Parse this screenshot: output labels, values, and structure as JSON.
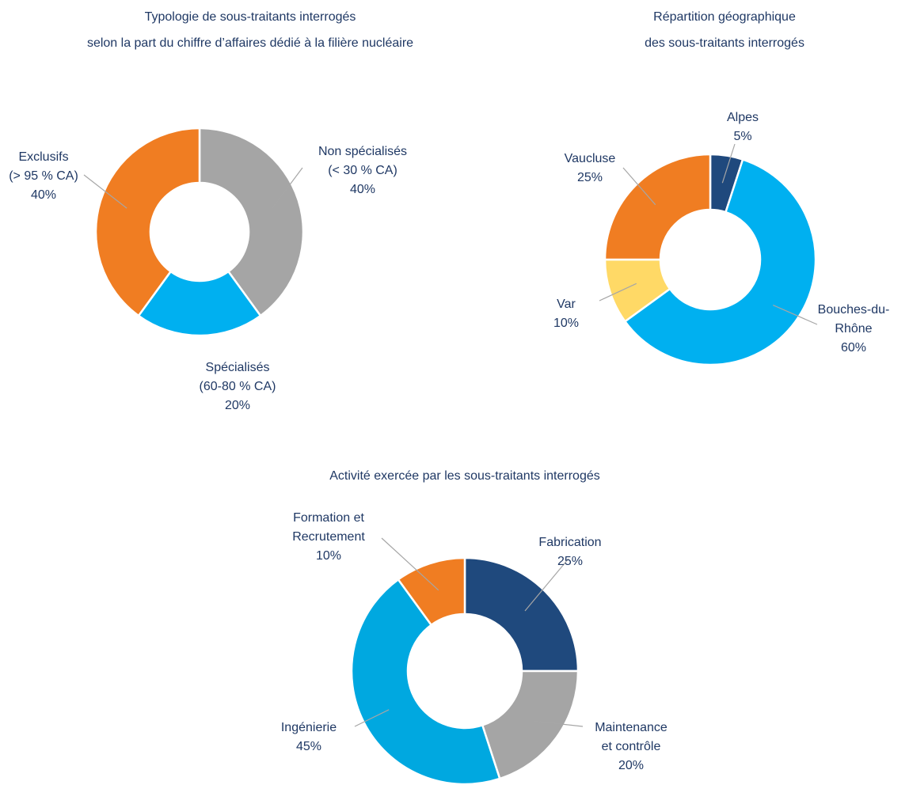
{
  "chart_data": [
    {
      "type": "donut",
      "title": "Typologie de sous-traitants interrogés\nselon la part du chiffre d’affaires dédié à la filière nucléaire",
      "categories": [
        "Non spécialisés\n(< 30 % CA)",
        "Spécialisés\n(60-80 % CA)",
        "Exclusifs\n(> 95 % CA)"
      ],
      "values": [
        40,
        20,
        40
      ],
      "value_labels": [
        "40%",
        "20%",
        "40%"
      ],
      "colors": [
        "#a5a5a5",
        "#00b0f0",
        "#f07d22"
      ]
    },
    {
      "type": "donut",
      "title": "Répartition géographique\ndes sous-traitants interrogés",
      "categories": [
        "Alpes",
        "Bouches-du-\nRhône",
        "Var",
        "Vaucluse"
      ],
      "values": [
        5,
        60,
        10,
        25
      ],
      "value_labels": [
        "5%",
        "60%",
        "10%",
        "25%"
      ],
      "colors": [
        "#1f497d",
        "#00b0f0",
        "#ffd966",
        "#f07d22"
      ]
    },
    {
      "type": "donut",
      "title": "Activité exercée par les sous-traitants interrogés",
      "categories": [
        "Fabrication",
        "Maintenance\net contrôle",
        "Ingénierie",
        "Formation et\nRecrutement"
      ],
      "values": [
        25,
        20,
        45,
        10
      ],
      "value_labels": [
        "25%",
        "20%",
        "45%",
        "10%"
      ],
      "colors": [
        "#1f497d",
        "#a5a5a5",
        "#00a8e0",
        "#f07d22"
      ]
    }
  ]
}
